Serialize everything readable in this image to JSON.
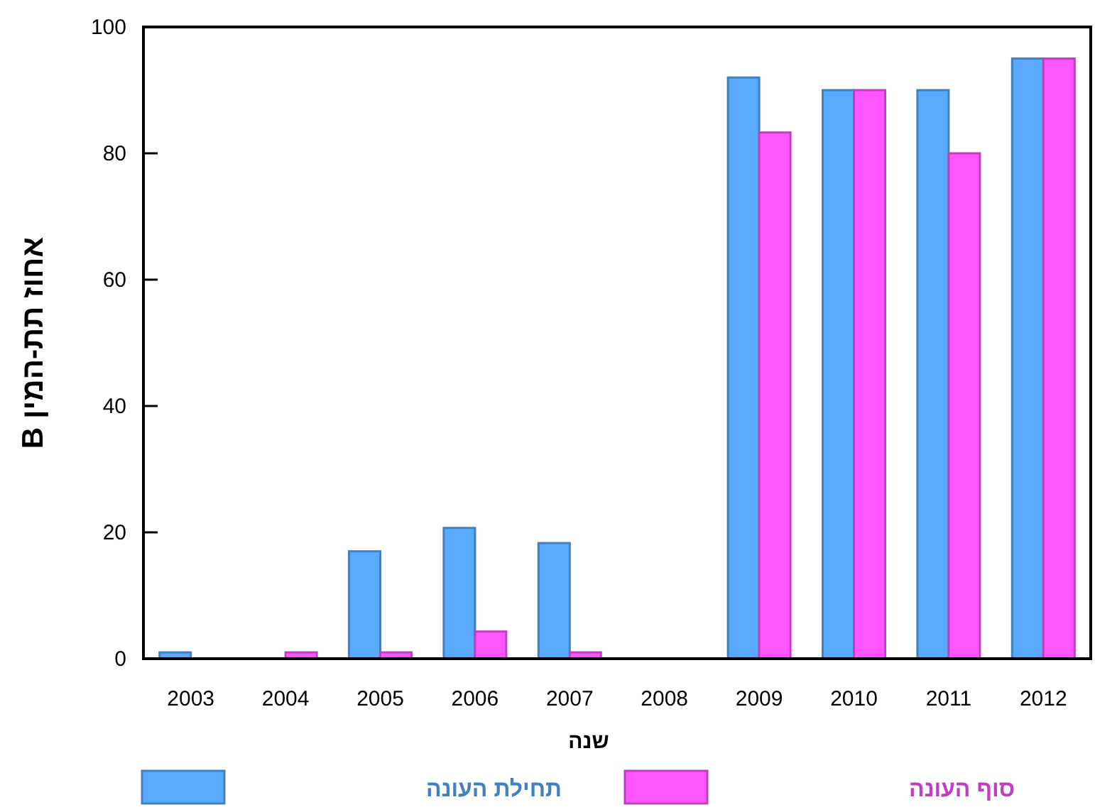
{
  "chart_data": {
    "type": "bar",
    "xlabel": "שנה",
    "ylabel": "אחוז תת-המין B",
    "categories": [
      "2003",
      "2004",
      "2005",
      "2006",
      "2007",
      "2008",
      "2009",
      "2010",
      "2011",
      "2012"
    ],
    "series": [
      {
        "name": "תחילת העונה",
        "color": "#59aaff",
        "values": [
          1,
          0,
          17,
          20.7,
          18.3,
          0,
          92,
          90,
          90,
          95
        ]
      },
      {
        "name": "סוף העונה",
        "color": "#ff55ff",
        "values": [
          0,
          1,
          1,
          4.3,
          1,
          0,
          83.3,
          90,
          80,
          95
        ]
      }
    ],
    "ylim": [
      0,
      100
    ],
    "yticks": [
      0,
      20,
      40,
      60,
      80,
      100
    ],
    "grid": false,
    "legend": "bottom"
  }
}
